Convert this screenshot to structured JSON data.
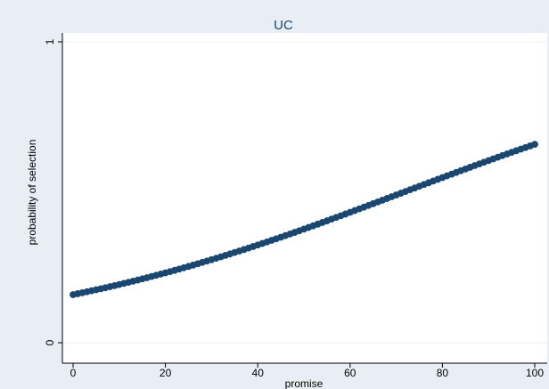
{
  "chart_data": {
    "type": "scatter",
    "title": "UC",
    "xlabel": "promise",
    "ylabel": "probability of selection",
    "xlim": [
      0,
      100
    ],
    "ylim": [
      0,
      1
    ],
    "xticks": [
      "0",
      "20",
      "40",
      "60",
      "80",
      "100"
    ],
    "yticks": [
      "0",
      "1"
    ],
    "grid": "horizontal",
    "legend": "none",
    "series": [
      {
        "logistic_intercept": -1.66,
        "logistic_slope": 0.0232,
        "x_start": 0,
        "x_end": 100,
        "x_step": 1
      }
    ]
  },
  "colors": {
    "outer_background": "#e8eef3",
    "plot_background": "#ffffff",
    "marker": "#1a476f",
    "title": "#1a476f",
    "gridline": "#eaf2f3"
  }
}
